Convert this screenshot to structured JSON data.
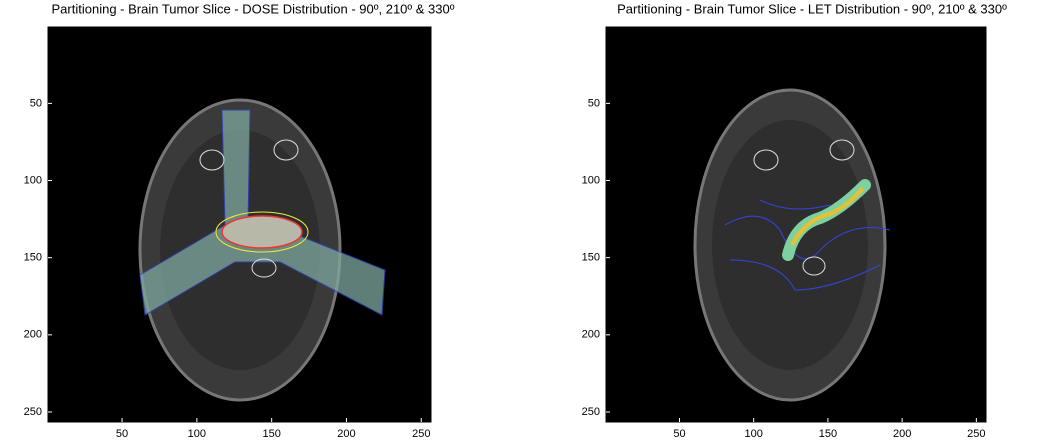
{
  "chart_data": [
    {
      "type": "image",
      "title": "Partitioning - Brain Tumor Slice - DOSE Distribution - 90º, 210º & 330º",
      "xlim": [
        0.5,
        256.5
      ],
      "ylim": [
        0.5,
        256.5
      ],
      "xticks": [
        50,
        100,
        150,
        200,
        250
      ],
      "yticks": [
        50,
        100,
        150,
        200,
        250
      ],
      "y_reversed": true
    },
    {
      "type": "image",
      "title": "Partitioning - Brain Tumor Slice - LET Distribution - 90º, 210º & 330º",
      "xlim": [
        0.5,
        256.5
      ],
      "ylim": [
        0.5,
        256.5
      ],
      "xticks": [
        50,
        100,
        150,
        200,
        250
      ],
      "yticks": [
        50,
        100,
        150,
        200,
        250
      ],
      "y_reversed": true
    }
  ]
}
